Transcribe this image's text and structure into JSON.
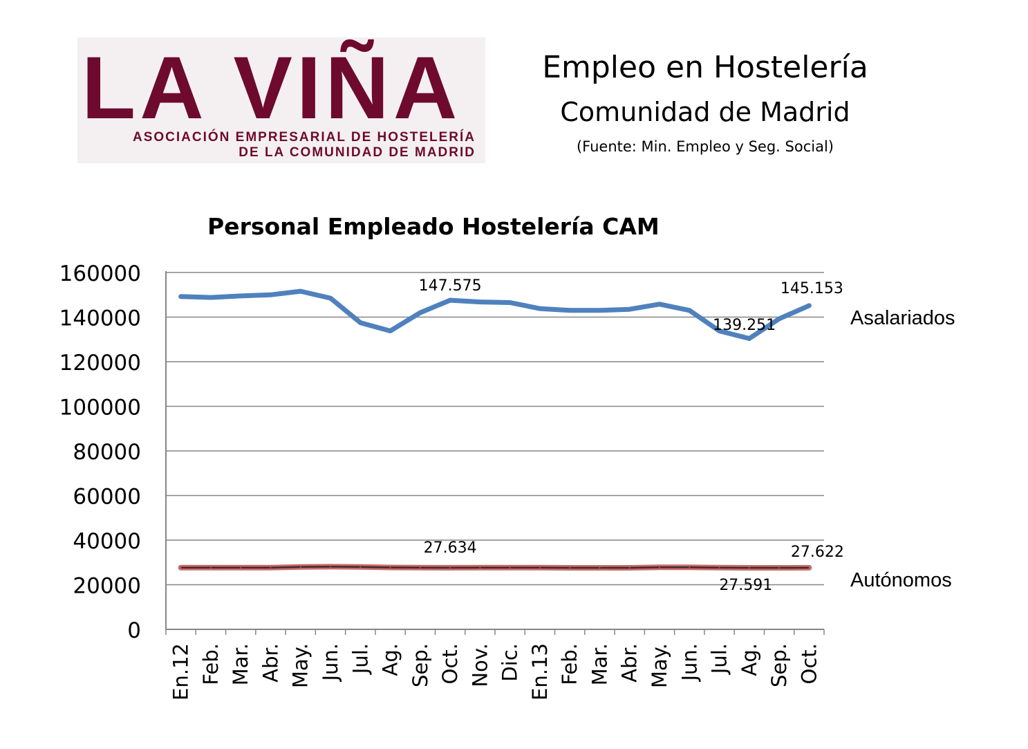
{
  "logo": {
    "name": "LA VIÑA",
    "line1": "ASOCIACIÓN EMPRESARIAL DE HOSTELERÍA",
    "line2": "DE LA COMUNIDAD DE MADRID"
  },
  "header": {
    "title": "Empleo en Hostelería",
    "subtitle": "Comunidad de Madrid",
    "source": "(Fuente: Min. Empleo y Seg. Social)"
  },
  "colors": {
    "logo": "#6e0a2e",
    "asalariados": "#4f81bd",
    "autonomos_outer": "#c0504d",
    "autonomos_inner": "#3f2a2a",
    "grid": "#868686"
  },
  "chart_data": {
    "type": "line",
    "title": "Personal Empleado Hostelería CAM",
    "xlabel": "",
    "ylabel": "",
    "ylim": [
      0,
      160000
    ],
    "yticks": [
      "0",
      "20000",
      "40000",
      "60000",
      "80000",
      "100000",
      "120000",
      "140000",
      "160000"
    ],
    "grid": true,
    "legend": "right",
    "categories": [
      "En.12",
      "Feb.",
      "Mar.",
      "Abr.",
      "May.",
      "Jun.",
      "Jul.",
      "Ag.",
      "Sep.",
      "Oct.",
      "Nov.",
      "Dic.",
      "En.13",
      "Feb.",
      "Mar.",
      "Abr.",
      "May.",
      "Jun.",
      "Jul.",
      "Ag.",
      "Sep.",
      "Oct."
    ],
    "series": [
      {
        "name": "Asalariados",
        "values": [
          149200,
          148800,
          149500,
          150000,
          151600,
          148500,
          137500,
          133800,
          142000,
          147575,
          146800,
          146500,
          143800,
          143000,
          143000,
          143500,
          145800,
          143000,
          133800,
          130400,
          139251,
          145153
        ]
      },
      {
        "name": "Autónomos",
        "values": [
          27650,
          27650,
          27650,
          27700,
          28000,
          28100,
          28000,
          27750,
          27700,
          27634,
          27650,
          27650,
          27650,
          27600,
          27600,
          27600,
          27800,
          27800,
          27700,
          27591,
          27600,
          27622
        ]
      }
    ],
    "annotations": [
      {
        "series": 0,
        "index": 9,
        "text": "147.575"
      },
      {
        "series": 0,
        "index": 20,
        "text": "139.251"
      },
      {
        "series": 0,
        "index": 21,
        "text": "145.153"
      },
      {
        "series": 1,
        "index": 9,
        "text": "27.634"
      },
      {
        "series": 1,
        "index": 19,
        "text": "27.591"
      },
      {
        "series": 1,
        "index": 21,
        "text": "27.622"
      }
    ]
  }
}
